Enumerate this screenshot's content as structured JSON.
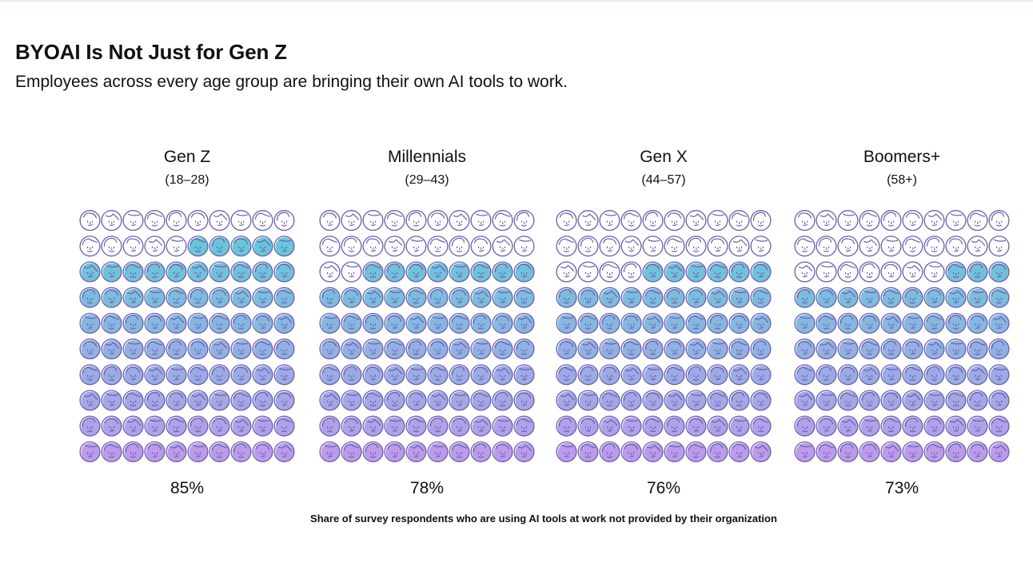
{
  "header": {
    "title": "BYOAI Is Not Just for Gen Z",
    "subtitle": "Employees across every age group are bringing their own AI tools to work."
  },
  "chart_data": {
    "type": "pictograph",
    "unit_grid": "10x10 faces; filled faces = share of respondents",
    "title": "BYOAI Is Not Just for Gen Z",
    "caption": "Share of survey respondents who are using AI tools at work not provided by their organization",
    "groups": [
      {
        "name": "Gen Z",
        "range": "(18–28)",
        "value": 85,
        "label": "85%"
      },
      {
        "name": "Millennials",
        "range": "(29–43)",
        "value": 78,
        "label": "78%"
      },
      {
        "name": "Gen X",
        "range": "(44–57)",
        "value": 76,
        "label": "76%"
      },
      {
        "name": "Boomers+",
        "range": "(58+)",
        "value": 73,
        "label": "73%"
      }
    ]
  },
  "colors": {
    "outline": "#6a5fb0",
    "fill_top": "#3fc3cf",
    "fill_bottom": "#b08ae8"
  }
}
